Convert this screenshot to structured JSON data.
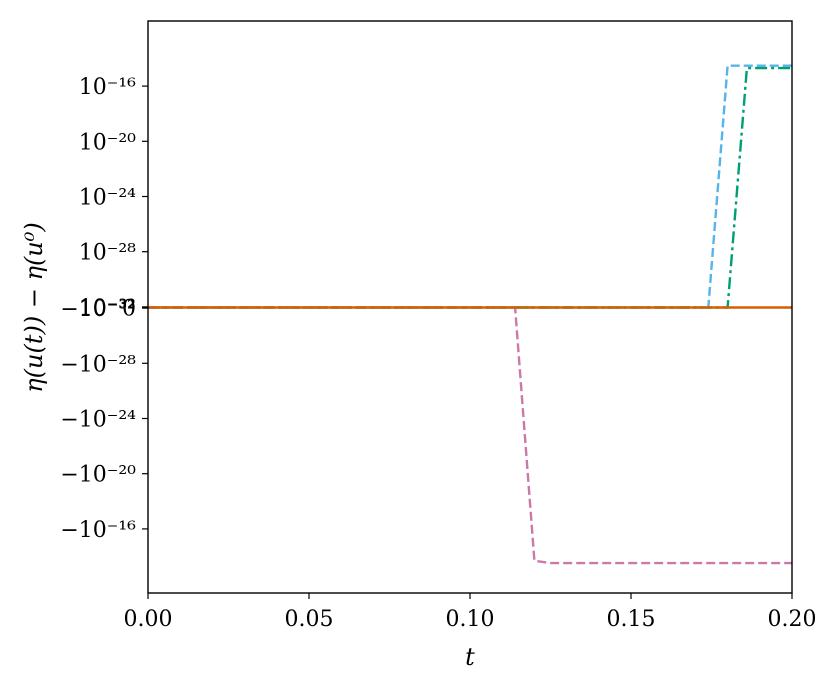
{
  "chart_data": {
    "type": "line",
    "title": "",
    "xlabel": "t",
    "ylabel": "η(u(t)) − η(u⁰)",
    "y_scale": "symlog",
    "xlim": [
      0.0,
      0.2
    ],
    "x_ticks": [
      {
        "value": 0.0,
        "label": "0.00"
      },
      {
        "value": 0.05,
        "label": "0.05"
      },
      {
        "value": 0.1,
        "label": "0.10"
      },
      {
        "value": 0.15,
        "label": "0.15"
      },
      {
        "value": 0.2,
        "label": "0.20"
      }
    ],
    "y_ticks": [
      {
        "value": 1e-16,
        "label": "10⁻¹⁶"
      },
      {
        "value": 1e-20,
        "label": "10⁻²⁰"
      },
      {
        "value": 1e-24,
        "label": "10⁻²⁴"
      },
      {
        "value": 1e-28,
        "label": "10⁻²⁸"
      },
      {
        "value": 1e-32,
        "label": "10⁻³²"
      },
      {
        "value": 0,
        "label": "0"
      },
      {
        "value": -1e-32,
        "label": "−10⁻³²"
      },
      {
        "value": -1e-28,
        "label": "−10⁻²⁸"
      },
      {
        "value": -1e-24,
        "label": "−10⁻²⁴"
      },
      {
        "value": -1e-20,
        "label": "−10⁻²⁰"
      },
      {
        "value": -1e-16,
        "label": "−10⁻¹⁶"
      }
    ],
    "grid": false,
    "legend": "none",
    "series": [
      {
        "color": "#56b4e9",
        "style": "dashed",
        "points": [
          [
            0.0,
            0
          ],
          [
            0.174,
            0
          ],
          [
            0.18,
            3e-15
          ],
          [
            0.2,
            3e-15
          ]
        ]
      },
      {
        "color": "#009e73",
        "style": "dashdot",
        "points": [
          [
            0.0,
            0
          ],
          [
            0.18,
            0
          ],
          [
            0.186,
            2e-15
          ],
          [
            0.2,
            2e-15
          ]
        ]
      },
      {
        "color": "#cc79a7",
        "style": "dashed",
        "points": [
          [
            0.0,
            0
          ],
          [
            0.114,
            0
          ],
          [
            0.12,
            -2e-14
          ],
          [
            0.125,
            -3e-14
          ],
          [
            0.2,
            -3e-14
          ]
        ]
      },
      {
        "color": "#d55e00",
        "style": "solid",
        "points": [
          [
            0.0,
            0
          ],
          [
            0.2,
            0
          ]
        ]
      }
    ]
  }
}
